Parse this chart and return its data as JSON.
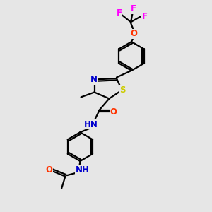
{
  "bg_color": "#e6e6e6",
  "bond_color": "#000000",
  "bond_width": 1.6,
  "atom_colors": {
    "F": "#ff00ff",
    "O": "#ff3300",
    "S": "#cccc00",
    "N": "#0000cd",
    "C": "#000000"
  },
  "font_size": 8.5,
  "fig_width": 3.0,
  "fig_height": 3.0,
  "dpi": 100
}
